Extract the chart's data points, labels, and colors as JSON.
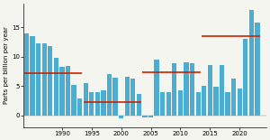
{
  "years": [
    1984,
    1985,
    1986,
    1987,
    1988,
    1989,
    1990,
    1991,
    1992,
    1993,
    1994,
    1995,
    1996,
    1997,
    1998,
    1999,
    2000,
    2001,
    2002,
    2003,
    2004,
    2005,
    2006,
    2007,
    2008,
    2009,
    2010,
    2011,
    2012,
    2013,
    2014,
    2015,
    2016,
    2017,
    2018,
    2019,
    2020,
    2021,
    2022,
    2023
  ],
  "values": [
    14.0,
    13.5,
    12.2,
    12.3,
    11.8,
    9.8,
    8.3,
    8.4,
    5.2,
    2.9,
    5.5,
    4.0,
    3.9,
    4.2,
    7.0,
    6.4,
    -0.5,
    6.5,
    6.3,
    3.7,
    -0.3,
    -0.3,
    9.5,
    4.0,
    3.9,
    8.8,
    4.2,
    9.1,
    8.9,
    4.0,
    5.0,
    8.5,
    4.9,
    8.6,
    3.9,
    6.3,
    4.6,
    13.1,
    18.0,
    15.8
  ],
  "decade_lines": [
    {
      "x_start": 1984,
      "x_end": 1993,
      "y": 7.2
    },
    {
      "x_start": 1994,
      "x_end": 2003,
      "y": 2.2
    },
    {
      "x_start": 2004,
      "x_end": 2013,
      "y": 7.3
    },
    {
      "x_start": 2014,
      "x_end": 2023,
      "y": 13.5
    }
  ],
  "bar_color": "#4badd2",
  "line_color": "#cc2200",
  "ylabel": "Parts per billion per year",
  "yticks": [
    0,
    5,
    10,
    15
  ],
  "xticks": [
    1990,
    1995,
    2000,
    2005,
    2010,
    2015,
    2020
  ],
  "xlim": [
    1983.5,
    2024.5
  ],
  "ylim": [
    -2,
    19
  ],
  "background_color": "#f5f5f0",
  "tick_fontsize": 5,
  "ylabel_fontsize": 5
}
